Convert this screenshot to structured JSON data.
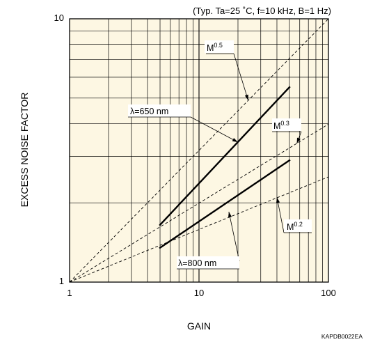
{
  "chart_data": {
    "type": "line",
    "title": "(Typ. Ta=25 ˚C, f=10 kHz, B=1 Hz)",
    "xlabel": "GAIN",
    "ylabel": "EXCESS NOISE FACTOR",
    "xscale": "log",
    "yscale": "log",
    "xlim": [
      1,
      100
    ],
    "ylim": [
      1,
      10
    ],
    "grid": true,
    "background_color": "#fdf7e3",
    "x_ticks": [
      "1",
      "10",
      "100"
    ],
    "y_ticks": [
      "1",
      "10"
    ],
    "series": [
      {
        "name": "λ=650 nm",
        "style": "solid",
        "x": [
          5,
          50
        ],
        "y": [
          1.65,
          5.5
        ]
      },
      {
        "name": "λ=800 nm",
        "style": "solid",
        "x": [
          5,
          50
        ],
        "y": [
          1.35,
          2.9
        ]
      },
      {
        "name": "M0.5",
        "style": "dashed",
        "x": [
          1,
          100
        ],
        "y": [
          1,
          10
        ]
      },
      {
        "name": "M0.3",
        "style": "dashed",
        "x": [
          1,
          100
        ],
        "y": [
          1,
          3.98
        ]
      },
      {
        "name": "M0.2",
        "style": "dashed",
        "x": [
          1,
          100
        ],
        "y": [
          1,
          2.51
        ]
      }
    ],
    "annotations": {
      "m05": {
        "base": "M",
        "sup": "0.5"
      },
      "m03": {
        "base": "M",
        "sup": "0.3"
      },
      "m02": {
        "base": "M",
        "sup": "0.2"
      },
      "lambda650": "λ=650 nm",
      "lambda800": "λ=800 nm"
    },
    "figure_code": "KAPDB0022EA"
  }
}
